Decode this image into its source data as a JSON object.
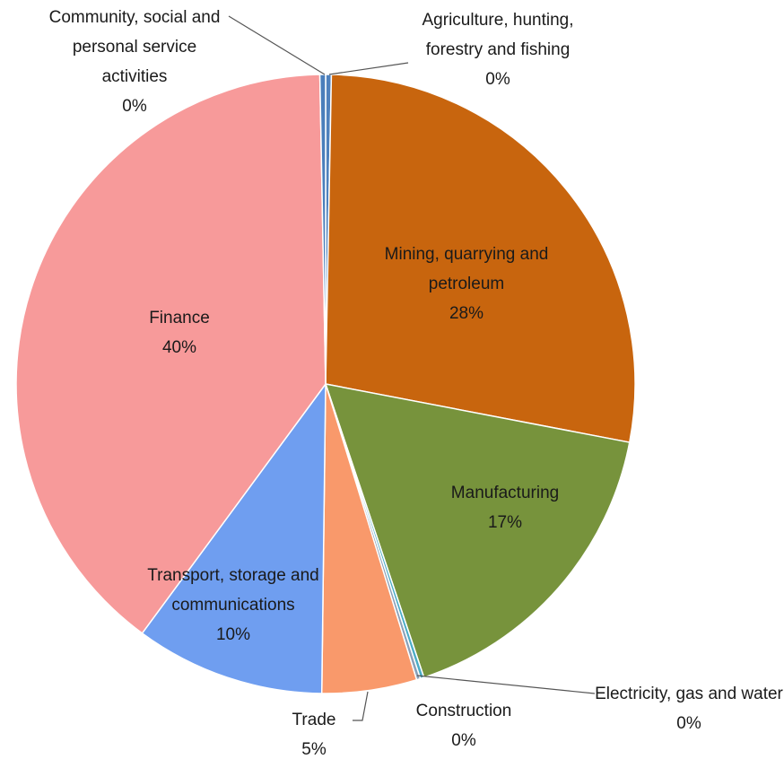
{
  "chart_data": {
    "type": "pie",
    "categories": [
      "Agriculture, hunting, forestry and fishing",
      "Mining, quarrying and petroleum",
      "Manufacturing",
      "Electricity, gas and water",
      "Construction",
      "Trade",
      "Transport, storage and communications",
      "Finance",
      "Community, social and personal service activities"
    ],
    "values": [
      0.3,
      28,
      17,
      0.2,
      0.2,
      5,
      10,
      40,
      0.3
    ],
    "value_labels": [
      "0%",
      "28%",
      "17%",
      "0%",
      "0%",
      "5%",
      "10%",
      "40%",
      "0%"
    ],
    "colors": [
      "#4f81bd",
      "#c8650e",
      "#77933c",
      "#4bacc6",
      "#8aa0b8",
      "#f9996b",
      "#6f9ef0",
      "#f79a9a",
      "#4a7ebb"
    ]
  }
}
